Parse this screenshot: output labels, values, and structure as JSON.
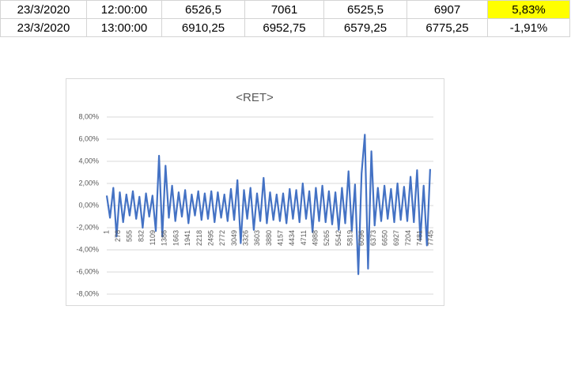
{
  "table": {
    "rows": [
      [
        "23/3/2020",
        "12:00:00",
        "6526,5",
        "7061",
        "6525,5",
        "6907",
        "5,83%"
      ],
      [
        "23/3/2020",
        "13:00:00",
        "6910,25",
        "6952,75",
        "6579,25",
        "6775,25",
        "-1,91%"
      ]
    ],
    "highlight_color": "#ffff00"
  },
  "chart_data": {
    "type": "line",
    "title": "<RET>",
    "xlim": [
      1,
      7800
    ],
    "xticks": [
      1,
      278,
      555,
      832,
      1109,
      1386,
      1663,
      1941,
      2218,
      2495,
      2772,
      3049,
      3326,
      3603,
      3880,
      4157,
      4434,
      4711,
      4988,
      5265,
      5542,
      5819,
      6096,
      6373,
      6650,
      6927,
      7204,
      7481,
      7745
    ],
    "ylim": [
      -8,
      8
    ],
    "yticks": [
      {
        "value": -8,
        "label": "-8,00%"
      },
      {
        "value": -6,
        "label": "-6,00%"
      },
      {
        "value": -4,
        "label": "-4,00%"
      },
      {
        "value": -2,
        "label": "-2,00%"
      },
      {
        "value": 0,
        "label": "0,00%"
      },
      {
        "value": 2,
        "label": "2,00%"
      },
      {
        "value": 4,
        "label": "4,00%"
      },
      {
        "value": 6,
        "label": "6,00%"
      },
      {
        "value": 8,
        "label": "8,00%"
      }
    ],
    "grid": true,
    "series": [
      {
        "name": "<RET>",
        "color": "#4472c4",
        "x": [
          1,
          79,
          157,
          235,
          313,
          391,
          469,
          547,
          625,
          703,
          781,
          859,
          937,
          1015,
          1093,
          1171,
          1249,
          1327,
          1405,
          1483,
          1561,
          1639,
          1717,
          1795,
          1873,
          1951,
          2029,
          2107,
          2185,
          2263,
          2341,
          2419,
          2497,
          2575,
          2653,
          2731,
          2809,
          2887,
          2965,
          3043,
          3121,
          3199,
          3277,
          3355,
          3433,
          3511,
          3589,
          3667,
          3745,
          3823,
          3901,
          3979,
          4057,
          4135,
          4213,
          4291,
          4369,
          4447,
          4525,
          4603,
          4681,
          4759,
          4837,
          4915,
          4993,
          5071,
          5149,
          5227,
          5305,
          5383,
          5461,
          5539,
          5617,
          5695,
          5773,
          5851,
          5929,
          6007,
          6085,
          6163,
          6241,
          6319,
          6397,
          6475,
          6553,
          6631,
          6709,
          6787,
          6865,
          6943,
          7021,
          7099,
          7177,
          7255,
          7333,
          7411,
          7489,
          7567,
          7645,
          7723
        ],
        "values": [
          0.9,
          -1.1,
          1.6,
          -2.8,
          1.2,
          -1.5,
          1.0,
          -0.9,
          1.3,
          -1.2,
          0.8,
          -2.0,
          1.1,
          -1.0,
          0.9,
          -2.3,
          4.5,
          -2.8,
          3.6,
          -1.1,
          1.8,
          -1.4,
          1.2,
          -1.0,
          1.4,
          -1.6,
          1.0,
          -0.9,
          1.3,
          -1.3,
          1.1,
          -1.2,
          1.3,
          -1.5,
          1.2,
          -1.1,
          1.0,
          -1.4,
          1.5,
          -1.3,
          2.3,
          -3.4,
          1.4,
          -1.2,
          1.6,
          -2.2,
          1.1,
          -1.4,
          2.5,
          -1.6,
          1.2,
          -1.3,
          1.0,
          -1.4,
          1.1,
          -1.6,
          1.5,
          -1.2,
          1.4,
          -1.5,
          2.0,
          -1.2,
          1.3,
          -2.4,
          1.6,
          -1.4,
          1.8,
          -1.5,
          1.3,
          -1.7,
          1.2,
          -2.2,
          1.6,
          -1.6,
          3.1,
          -2.3,
          1.9,
          -6.2,
          2.9,
          6.4,
          -5.7,
          4.9,
          -1.8,
          1.6,
          -1.4,
          1.8,
          -1.2,
          1.5,
          -1.5,
          2.0,
          -1.3,
          1.7,
          -1.4,
          2.6,
          -1.5,
          3.2,
          -3.1,
          1.8,
          -3.6,
          3.3
        ]
      }
    ]
  }
}
